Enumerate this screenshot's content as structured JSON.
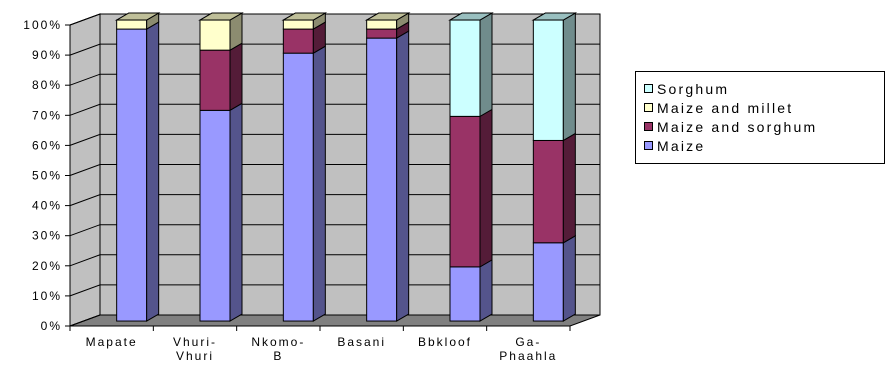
{
  "chart_data": {
    "type": "bar",
    "stacked": true,
    "percent_stacked": true,
    "three_d": true,
    "categories": [
      "Mapate",
      "Vhuri-\nVhuri",
      "Nkomo-\nB",
      "Basani",
      "Bbkloof",
      "Ga-\nPhaahla"
    ],
    "series": [
      {
        "name": "Maize",
        "color": "#9999ff",
        "values": [
          97,
          70,
          89,
          94,
          18,
          26
        ]
      },
      {
        "name": "Maize and sorghum",
        "color": "#993366",
        "values": [
          0,
          20,
          8,
          3,
          50,
          34
        ]
      },
      {
        "name": "Maize and millet",
        "color": "#ffffcc",
        "values": [
          3,
          10,
          3,
          3,
          0,
          0
        ]
      },
      {
        "name": "Sorghum",
        "color": "#ccffff",
        "values": [
          0,
          0,
          0,
          0,
          32,
          40
        ]
      }
    ],
    "yticks": [
      "0%",
      "10%",
      "20%",
      "30%",
      "40%",
      "50%",
      "60%",
      "70%",
      "80%",
      "90%",
      "100%"
    ],
    "ylim": [
      0,
      100
    ],
    "grid": true,
    "wall_color": "#c0c0c0",
    "floor_color": "#808080",
    "legend_position": "right"
  }
}
